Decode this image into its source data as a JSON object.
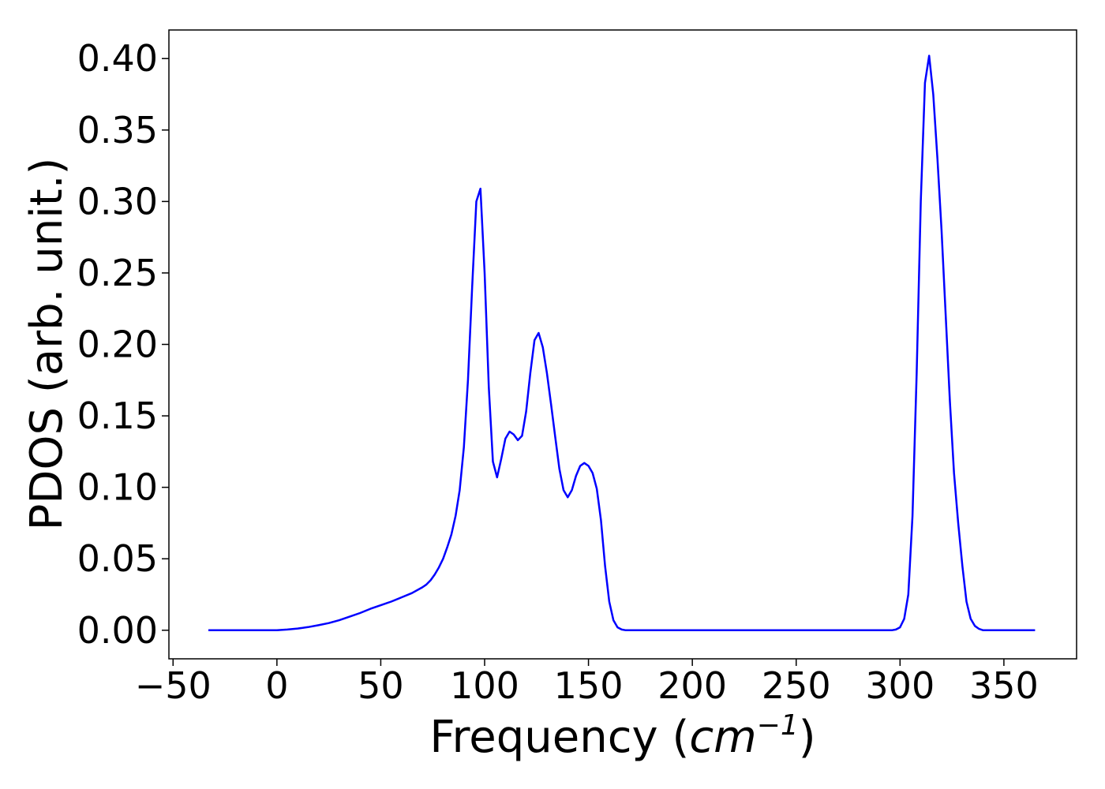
{
  "chart_data": {
    "type": "line",
    "xlabel_main": "Frequency (",
    "xlabel_unit": "cm",
    "xlabel_exp": "−1",
    "xlabel_close": ")",
    "ylabel": "PDOS (arb. unit.)",
    "xlim": [
      -52,
      385
    ],
    "ylim": [
      -0.02,
      0.42
    ],
    "xticks": [
      -50,
      0,
      50,
      100,
      150,
      200,
      250,
      300,
      350
    ],
    "xtick_labels": [
      "−50",
      "0",
      "50",
      "100",
      "150",
      "200",
      "250",
      "300",
      "350"
    ],
    "yticks": [
      0.0,
      0.05,
      0.1,
      0.15,
      0.2,
      0.25,
      0.3,
      0.35,
      0.4
    ],
    "ytick_labels": [
      "0.00",
      "0.05",
      "0.10",
      "0.15",
      "0.20",
      "0.25",
      "0.30",
      "0.35",
      "0.40"
    ],
    "grid": false,
    "series": [
      {
        "color": "#0000ff",
        "x": [
          -33,
          0,
          5,
          10,
          15,
          20,
          25,
          30,
          35,
          40,
          45,
          50,
          55,
          60,
          65,
          70,
          72,
          74,
          76,
          78,
          80,
          82,
          84,
          86,
          88,
          90,
          92,
          94,
          96,
          98,
          100,
          102,
          104,
          106,
          108,
          110,
          112,
          114,
          116,
          118,
          120,
          122,
          124,
          126,
          128,
          130,
          132,
          134,
          136,
          138,
          140,
          142,
          144,
          146,
          148,
          150,
          152,
          154,
          156,
          158,
          160,
          162,
          164,
          166,
          168,
          170,
          200,
          250,
          296,
          298,
          300,
          302,
          304,
          306,
          308,
          310,
          312,
          314,
          316,
          318,
          320,
          322,
          324,
          326,
          328,
          330,
          332,
          334,
          336,
          338,
          340,
          342,
          345,
          365
        ],
        "y": [
          0.0,
          0.0,
          0.0005,
          0.0012,
          0.0022,
          0.0035,
          0.005,
          0.007,
          0.0095,
          0.012,
          0.015,
          0.0175,
          0.02,
          0.023,
          0.026,
          0.03,
          0.032,
          0.035,
          0.039,
          0.044,
          0.05,
          0.058,
          0.067,
          0.08,
          0.098,
          0.128,
          0.175,
          0.24,
          0.3,
          0.309,
          0.25,
          0.17,
          0.118,
          0.107,
          0.12,
          0.134,
          0.139,
          0.137,
          0.133,
          0.136,
          0.153,
          0.18,
          0.203,
          0.208,
          0.198,
          0.18,
          0.158,
          0.135,
          0.113,
          0.098,
          0.093,
          0.098,
          0.108,
          0.115,
          0.117,
          0.115,
          0.11,
          0.099,
          0.077,
          0.045,
          0.02,
          0.007,
          0.002,
          0.0005,
          0.0,
          0.0,
          0.0,
          0.0,
          0.0,
          0.0005,
          0.002,
          0.008,
          0.025,
          0.08,
          0.18,
          0.3,
          0.383,
          0.402,
          0.375,
          0.33,
          0.28,
          0.22,
          0.16,
          0.11,
          0.075,
          0.045,
          0.02,
          0.008,
          0.003,
          0.001,
          0.0,
          0.0,
          0.0,
          0.0
        ]
      }
    ]
  }
}
